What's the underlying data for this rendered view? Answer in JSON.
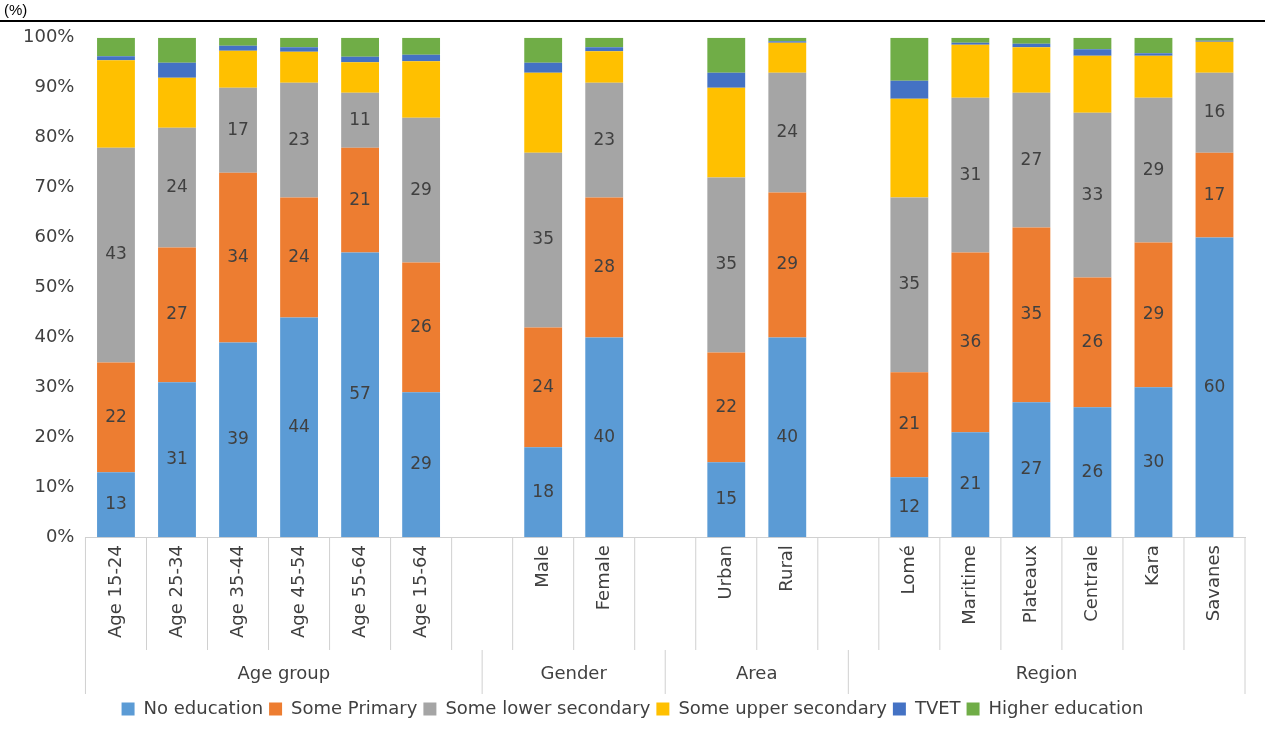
{
  "chart_data": {
    "type": "bar",
    "stacked": true,
    "ylabel": "(%)",
    "categories": [
      "Age 15-24",
      "Age 25-34",
      "Age 35-44",
      "Age 45-54",
      "Age 55-64",
      "Age 15-64",
      null,
      "Male",
      "Female",
      null,
      "Urban",
      "Rural",
      null,
      "Lomé",
      "Maritime",
      "Plateaux",
      "Centrale",
      "Kara",
      "Savanes"
    ],
    "annotations": [
      "Age group",
      "Gender",
      "Area",
      "Region"
    ],
    "series": [
      {
        "name": "No education",
        "color": "#5b9bd5",
        "values": [
          13,
          31,
          39,
          44,
          57,
          29,
          null,
          18,
          40,
          null,
          15,
          40,
          null,
          12,
          21,
          27,
          26,
          30,
          60
        ],
        "value_labels": [
          "13",
          "31",
          "39",
          "44",
          "57",
          "29",
          null,
          "18",
          "40",
          null,
          "15",
          "40",
          null,
          "12",
          "21",
          "27",
          "26",
          "30",
          "60"
        ]
      },
      {
        "name": "Some Primary",
        "color": "#ed7d31",
        "values": [
          22,
          27,
          34,
          24,
          21,
          26,
          null,
          24,
          28,
          null,
          22,
          29,
          null,
          21,
          36,
          35,
          26,
          29,
          17
        ],
        "value_labels": [
          "22",
          "27",
          "34",
          "24",
          "21",
          "26",
          null,
          "24",
          "28",
          null,
          "22",
          "29",
          null,
          "21",
          "36",
          "35",
          "26",
          "29",
          "17"
        ]
      },
      {
        "name": "Some lower secondary",
        "color": "#a5a5a5",
        "values": [
          43,
          24,
          17,
          23,
          11,
          29,
          null,
          35,
          23,
          null,
          35,
          24,
          null,
          35,
          31,
          27,
          33,
          29,
          16
        ],
        "value_labels": [
          "43",
          "24",
          "17",
          "23",
          "11",
          "29",
          null,
          "35",
          "23",
          null,
          "35",
          "24",
          null,
          "35",
          "31",
          "27",
          "33",
          "29",
          "16"
        ]
      },
      {
        "name": "Some upper secondary",
        "color": "#ffc000",
        "values": [
          17.5,
          10,
          7.4,
          6.2,
          6.1,
          11.3,
          null,
          16,
          6.3,
          null,
          18,
          6,
          null,
          19.8,
          10.6,
          9.1,
          11.4,
          8.4,
          6.2
        ]
      },
      {
        "name": "TVET",
        "color": "#4472c4",
        "values": [
          0.8,
          3,
          1,
          0.9,
          1.1,
          1.3,
          null,
          2,
          0.8,
          null,
          3,
          0.3,
          null,
          3.6,
          0.4,
          0.7,
          1.3,
          0.5,
          0.2
        ]
      },
      {
        "name": "Higher education",
        "color": "#70ad47",
        "values": [
          3.7,
          5,
          1.6,
          1.9,
          3.8,
          3.4,
          null,
          5,
          1.9,
          null,
          7,
          0.7,
          null,
          8.6,
          1,
          1.2,
          2.3,
          3.1,
          0.6
        ]
      }
    ],
    "ylim": [
      0,
      100
    ],
    "yticks": [
      {
        "value": 0,
        "label": "0%"
      },
      {
        "value": 10,
        "label": "10%"
      },
      {
        "value": 20,
        "label": "20%"
      },
      {
        "value": 30,
        "label": "30%"
      },
      {
        "value": 40,
        "label": "40%"
      },
      {
        "value": 50,
        "label": "50%"
      },
      {
        "value": 60,
        "label": "60%"
      },
      {
        "value": 70,
        "label": "70%"
      },
      {
        "value": 80,
        "label": "80%"
      },
      {
        "value": 90,
        "label": "90%"
      },
      {
        "value": 100,
        "label": "100%"
      }
    ],
    "grid": false,
    "legend": "bottom"
  }
}
